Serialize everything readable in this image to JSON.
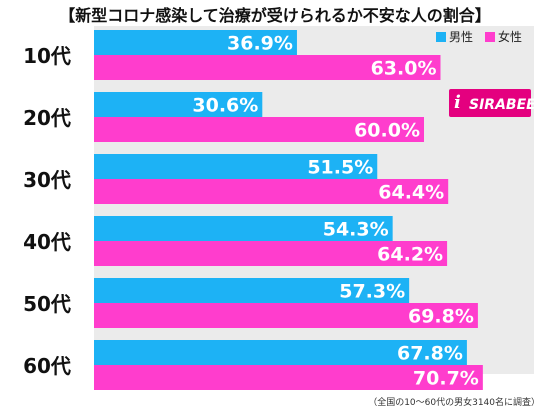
{
  "title": "【新型コロナ感染して治療が受けられるか不安な人の割合】",
  "legend": [
    {
      "label": "男性",
      "color": "#1db2f5"
    },
    {
      "label": "女性",
      "color": "#ff3dcd"
    }
  ],
  "logo": {
    "mark": "i",
    "text": "SIRABEE"
  },
  "note": "（全国の10～60代の男女3140名に調査）",
  "chart_data": {
    "type": "bar",
    "orientation": "horizontal",
    "categories": [
      "10代",
      "20代",
      "30代",
      "40代",
      "50代",
      "60代"
    ],
    "series": [
      {
        "name": "男性",
        "color": "#1db2f5",
        "values": [
          36.9,
          30.6,
          51.5,
          54.3,
          57.3,
          67.8
        ],
        "labels": [
          "36.9%",
          "30.6%",
          "51.5%",
          "54.3%",
          "57.3%",
          "67.8%"
        ]
      },
      {
        "name": "女性",
        "color": "#ff3dcd",
        "values": [
          63.0,
          60.0,
          64.4,
          64.2,
          69.8,
          70.7
        ],
        "labels": [
          "63.0%",
          "60.0%",
          "64.4%",
          "64.2%",
          "69.8%",
          "70.7%"
        ]
      }
    ],
    "xlim": [
      0,
      80
    ],
    "grid": false,
    "legend_position": "top-right"
  }
}
